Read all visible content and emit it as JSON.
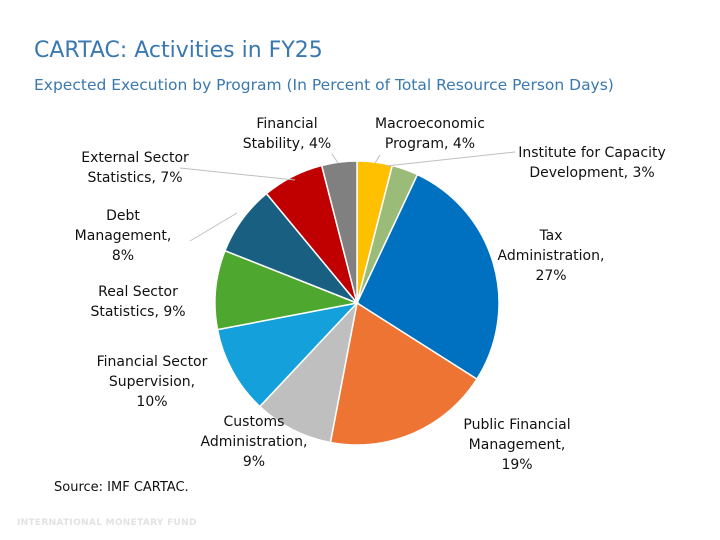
{
  "header": {
    "title": "CARTAC: Activities in FY25",
    "subtitle": "Expected Execution by Program (In Percent of Total Resource Person Days)"
  },
  "chart_data": {
    "type": "pie",
    "start": "top",
    "direction": "clockwise",
    "slices": [
      {
        "label": "Macroeconomic Program",
        "value": 4,
        "text": [
          "Macroeconomic",
          "Program, 4%"
        ],
        "color": "#ffc000"
      },
      {
        "label": "Institute for Capacity Development",
        "value": 3,
        "text": [
          "Institute for Capacity",
          "Development, 3%"
        ],
        "color": "#9bbb78"
      },
      {
        "label": "Tax Administration",
        "value": 27,
        "text": [
          "Tax",
          "Administration,",
          "27%"
        ],
        "color": "#0070c0"
      },
      {
        "label": "Public Financial Management",
        "value": 19,
        "text": [
          "Public Financial",
          "Management,",
          "19%"
        ],
        "color": "#ed7432"
      },
      {
        "label": "Customs Administration",
        "value": 9,
        "text": [
          "Customs",
          "Administration,",
          "9%"
        ],
        "color": "#bfbfbf"
      },
      {
        "label": "Financial Sector Supervision",
        "value": 10,
        "text": [
          "Financial Sector",
          "Supervision,",
          "10%"
        ],
        "color": "#14a0db"
      },
      {
        "label": "Real Sector Statistics",
        "value": 9,
        "text": [
          "Real Sector",
          "Statistics, 9%"
        ],
        "color": "#4ea72e"
      },
      {
        "label": "Debt Management",
        "value": 8,
        "text": [
          "Debt",
          "Management,",
          "8%"
        ],
        "color": "#185f82"
      },
      {
        "label": "External Sector Statistics",
        "value": 7,
        "text": [
          "External Sector",
          "Statistics, 7%"
        ],
        "color": "#c00000"
      },
      {
        "label": "Financial Stability",
        "value": 4,
        "text": [
          "Financial",
          "Stability, 4%"
        ],
        "color": "#808080"
      }
    ]
  },
  "footer": {
    "source": "Source: IMF CARTAC.",
    "watermark": "INTERNATIONAL MONETARY FUND"
  }
}
